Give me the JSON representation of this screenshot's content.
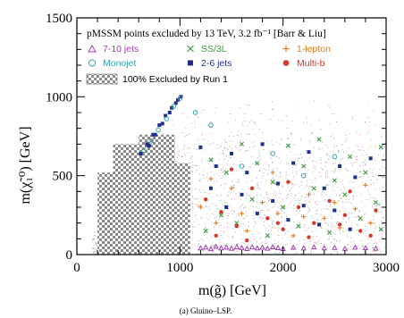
{
  "caption": "(a) Gluino–LSP.",
  "chart_data": {
    "type": "scatter",
    "title": "pMSSM points excluded by 13 TeV, 3.2 fb⁻¹ [Barr & Liu]",
    "xlabel": "m(g̃) [GeV]",
    "ylabel": "m(χ̃₁⁰) [GeV]",
    "xlim": [
      0,
      3000
    ],
    "ylim": [
      0,
      1500
    ],
    "x_ticks": [
      "0",
      "1000",
      "2000",
      "3000"
    ],
    "y_ticks": [
      "0",
      "500",
      "1000",
      "1500"
    ],
    "grid": false,
    "legend_position": "top",
    "legend": [
      {
        "label": "7-10 jets",
        "marker": "triangle-open",
        "color": "#a23fb0"
      },
      {
        "label": "SS/3L",
        "marker": "x",
        "color": "#3d9a3d"
      },
      {
        "label": "1-lepton",
        "marker": "plus",
        "color": "#e07a1f"
      },
      {
        "label": "Monojet",
        "marker": "circle-open",
        "color": "#3a9fa8"
      },
      {
        "label": "2-6 jets",
        "marker": "square",
        "color": "#1d2f8c"
      },
      {
        "label": "Multi-b",
        "marker": "circle",
        "color": "#d8372b"
      },
      {
        "label": "100% Excluded by Run 1",
        "marker": "hatched-box",
        "color": "#8a8a8a"
      }
    ],
    "run1_excluded_region": {
      "description_points": [
        [
          200,
          0
        ],
        [
          1100,
          0
        ],
        [
          1100,
          580
        ],
        [
          950,
          580
        ],
        [
          950,
          760
        ],
        [
          600,
          760
        ],
        [
          600,
          700
        ],
        [
          350,
          700
        ],
        [
          350,
          520
        ],
        [
          200,
          520
        ]
      ]
    },
    "series": [
      {
        "name": "2-6 jets",
        "color": "#1d2f8c",
        "marker": "square",
        "points": [
          [
            620,
            640
          ],
          [
            680,
            700
          ],
          [
            740,
            760
          ],
          [
            800,
            820
          ],
          [
            860,
            880
          ],
          [
            920,
            930
          ],
          [
            980,
            980
          ],
          [
            1010,
            1000
          ],
          [
            700,
            690
          ],
          [
            760,
            760
          ],
          [
            830,
            830
          ],
          [
            900,
            900
          ],
          [
            960,
            960
          ],
          [
            1200,
            680
          ],
          [
            1350,
            560
          ],
          [
            1500,
            640
          ],
          [
            1650,
            520
          ],
          [
            1800,
            700
          ],
          [
            1950,
            450
          ],
          [
            2100,
            580
          ],
          [
            2250,
            650
          ],
          [
            2400,
            420
          ],
          [
            2550,
            560
          ],
          [
            2700,
            490
          ],
          [
            2850,
            610
          ],
          [
            1300,
            420
          ],
          [
            1450,
            300
          ],
          [
            1600,
            380
          ],
          [
            1750,
            260
          ],
          [
            1900,
            340
          ],
          [
            2050,
            220
          ],
          [
            2200,
            310
          ],
          [
            2350,
            190
          ],
          [
            2500,
            280
          ],
          [
            2650,
            160
          ]
        ]
      },
      {
        "name": "Monojet",
        "color": "#3a9fa8",
        "marker": "circle-open",
        "points": [
          [
            650,
            660
          ],
          [
            720,
            720
          ],
          [
            790,
            790
          ],
          [
            870,
            860
          ],
          [
            940,
            940
          ],
          [
            1000,
            990
          ],
          [
            1150,
            900
          ],
          [
            1300,
            820
          ],
          [
            1600,
            560
          ],
          [
            1900,
            640
          ],
          [
            2200,
            500
          ],
          [
            2500,
            620
          ]
        ]
      },
      {
        "name": "SS/3L",
        "color": "#3d9a3d",
        "marker": "x",
        "points": [
          [
            1300,
            600
          ],
          [
            1450,
            520
          ],
          [
            1600,
            700
          ],
          [
            1750,
            580
          ],
          [
            1900,
            460
          ],
          [
            2050,
            690
          ],
          [
            2200,
            560
          ],
          [
            2350,
            730
          ],
          [
            2500,
            470
          ],
          [
            2650,
            620
          ],
          [
            2800,
            520
          ],
          [
            2950,
            680
          ],
          [
            1400,
            250
          ],
          [
            1700,
            350
          ],
          [
            2000,
            300
          ],
          [
            2300,
            420
          ],
          [
            2600,
            380
          ],
          [
            2900,
            330
          ],
          [
            1250,
            150
          ],
          [
            1550,
            200
          ],
          [
            1850,
            120
          ],
          [
            2150,
            180
          ],
          [
            2450,
            140
          ],
          [
            2750,
            230
          ],
          [
            2950,
            160
          ]
        ]
      },
      {
        "name": "1-lepton",
        "color": "#e07a1f",
        "marker": "plus",
        "points": [
          [
            1200,
            300
          ],
          [
            1350,
            200
          ],
          [
            1500,
            420
          ],
          [
            1650,
            150
          ],
          [
            1800,
            330
          ],
          [
            1950,
            260
          ],
          [
            2100,
            120
          ],
          [
            2250,
            380
          ],
          [
            2400,
            230
          ],
          [
            2550,
            170
          ],
          [
            2700,
            290
          ],
          [
            2850,
            200
          ],
          [
            1300,
            480
          ],
          [
            1600,
            260
          ],
          [
            1900,
            520
          ],
          [
            2200,
            240
          ],
          [
            2500,
            330
          ],
          [
            2800,
            440
          ]
        ]
      },
      {
        "name": "Multi-b",
        "color": "#d8372b",
        "marker": "circle",
        "points": [
          [
            1250,
            350
          ],
          [
            1400,
            270
          ],
          [
            1550,
            180
          ],
          [
            1700,
            420
          ],
          [
            1850,
            230
          ],
          [
            2000,
            160
          ],
          [
            2150,
            300
          ],
          [
            2300,
            200
          ],
          [
            2450,
            340
          ],
          [
            2600,
            250
          ],
          [
            2750,
            150
          ],
          [
            2900,
            280
          ],
          [
            1350,
            120
          ],
          [
            1650,
            90
          ],
          [
            1950,
            200
          ],
          [
            2250,
            110
          ],
          [
            2550,
            190
          ],
          [
            2850,
            120
          ],
          [
            1500,
            540
          ],
          [
            2050,
            460
          ],
          [
            2650,
            400
          ]
        ]
      },
      {
        "name": "7-10 jets",
        "color": "#a23fb0",
        "marker": "triangle-open",
        "points": [
          [
            1200,
            40
          ],
          [
            1250,
            45
          ],
          [
            1300,
            35
          ],
          [
            1350,
            50
          ],
          [
            1400,
            40
          ],
          [
            1450,
            45
          ],
          [
            1500,
            38
          ],
          [
            1550,
            48
          ],
          [
            1600,
            42
          ],
          [
            1650,
            36
          ],
          [
            1700,
            46
          ],
          [
            1750,
            40
          ],
          [
            1800,
            44
          ],
          [
            1850,
            38
          ],
          [
            1900,
            47
          ],
          [
            1950,
            41
          ],
          [
            2000,
            36
          ],
          [
            2100,
            44
          ],
          [
            2200,
            39
          ],
          [
            2300,
            46
          ],
          [
            2400,
            40
          ],
          [
            2500,
            43
          ],
          [
            2600,
            37
          ],
          [
            2700,
            45
          ],
          [
            2800,
            41
          ],
          [
            2900,
            38
          ]
        ]
      }
    ]
  }
}
